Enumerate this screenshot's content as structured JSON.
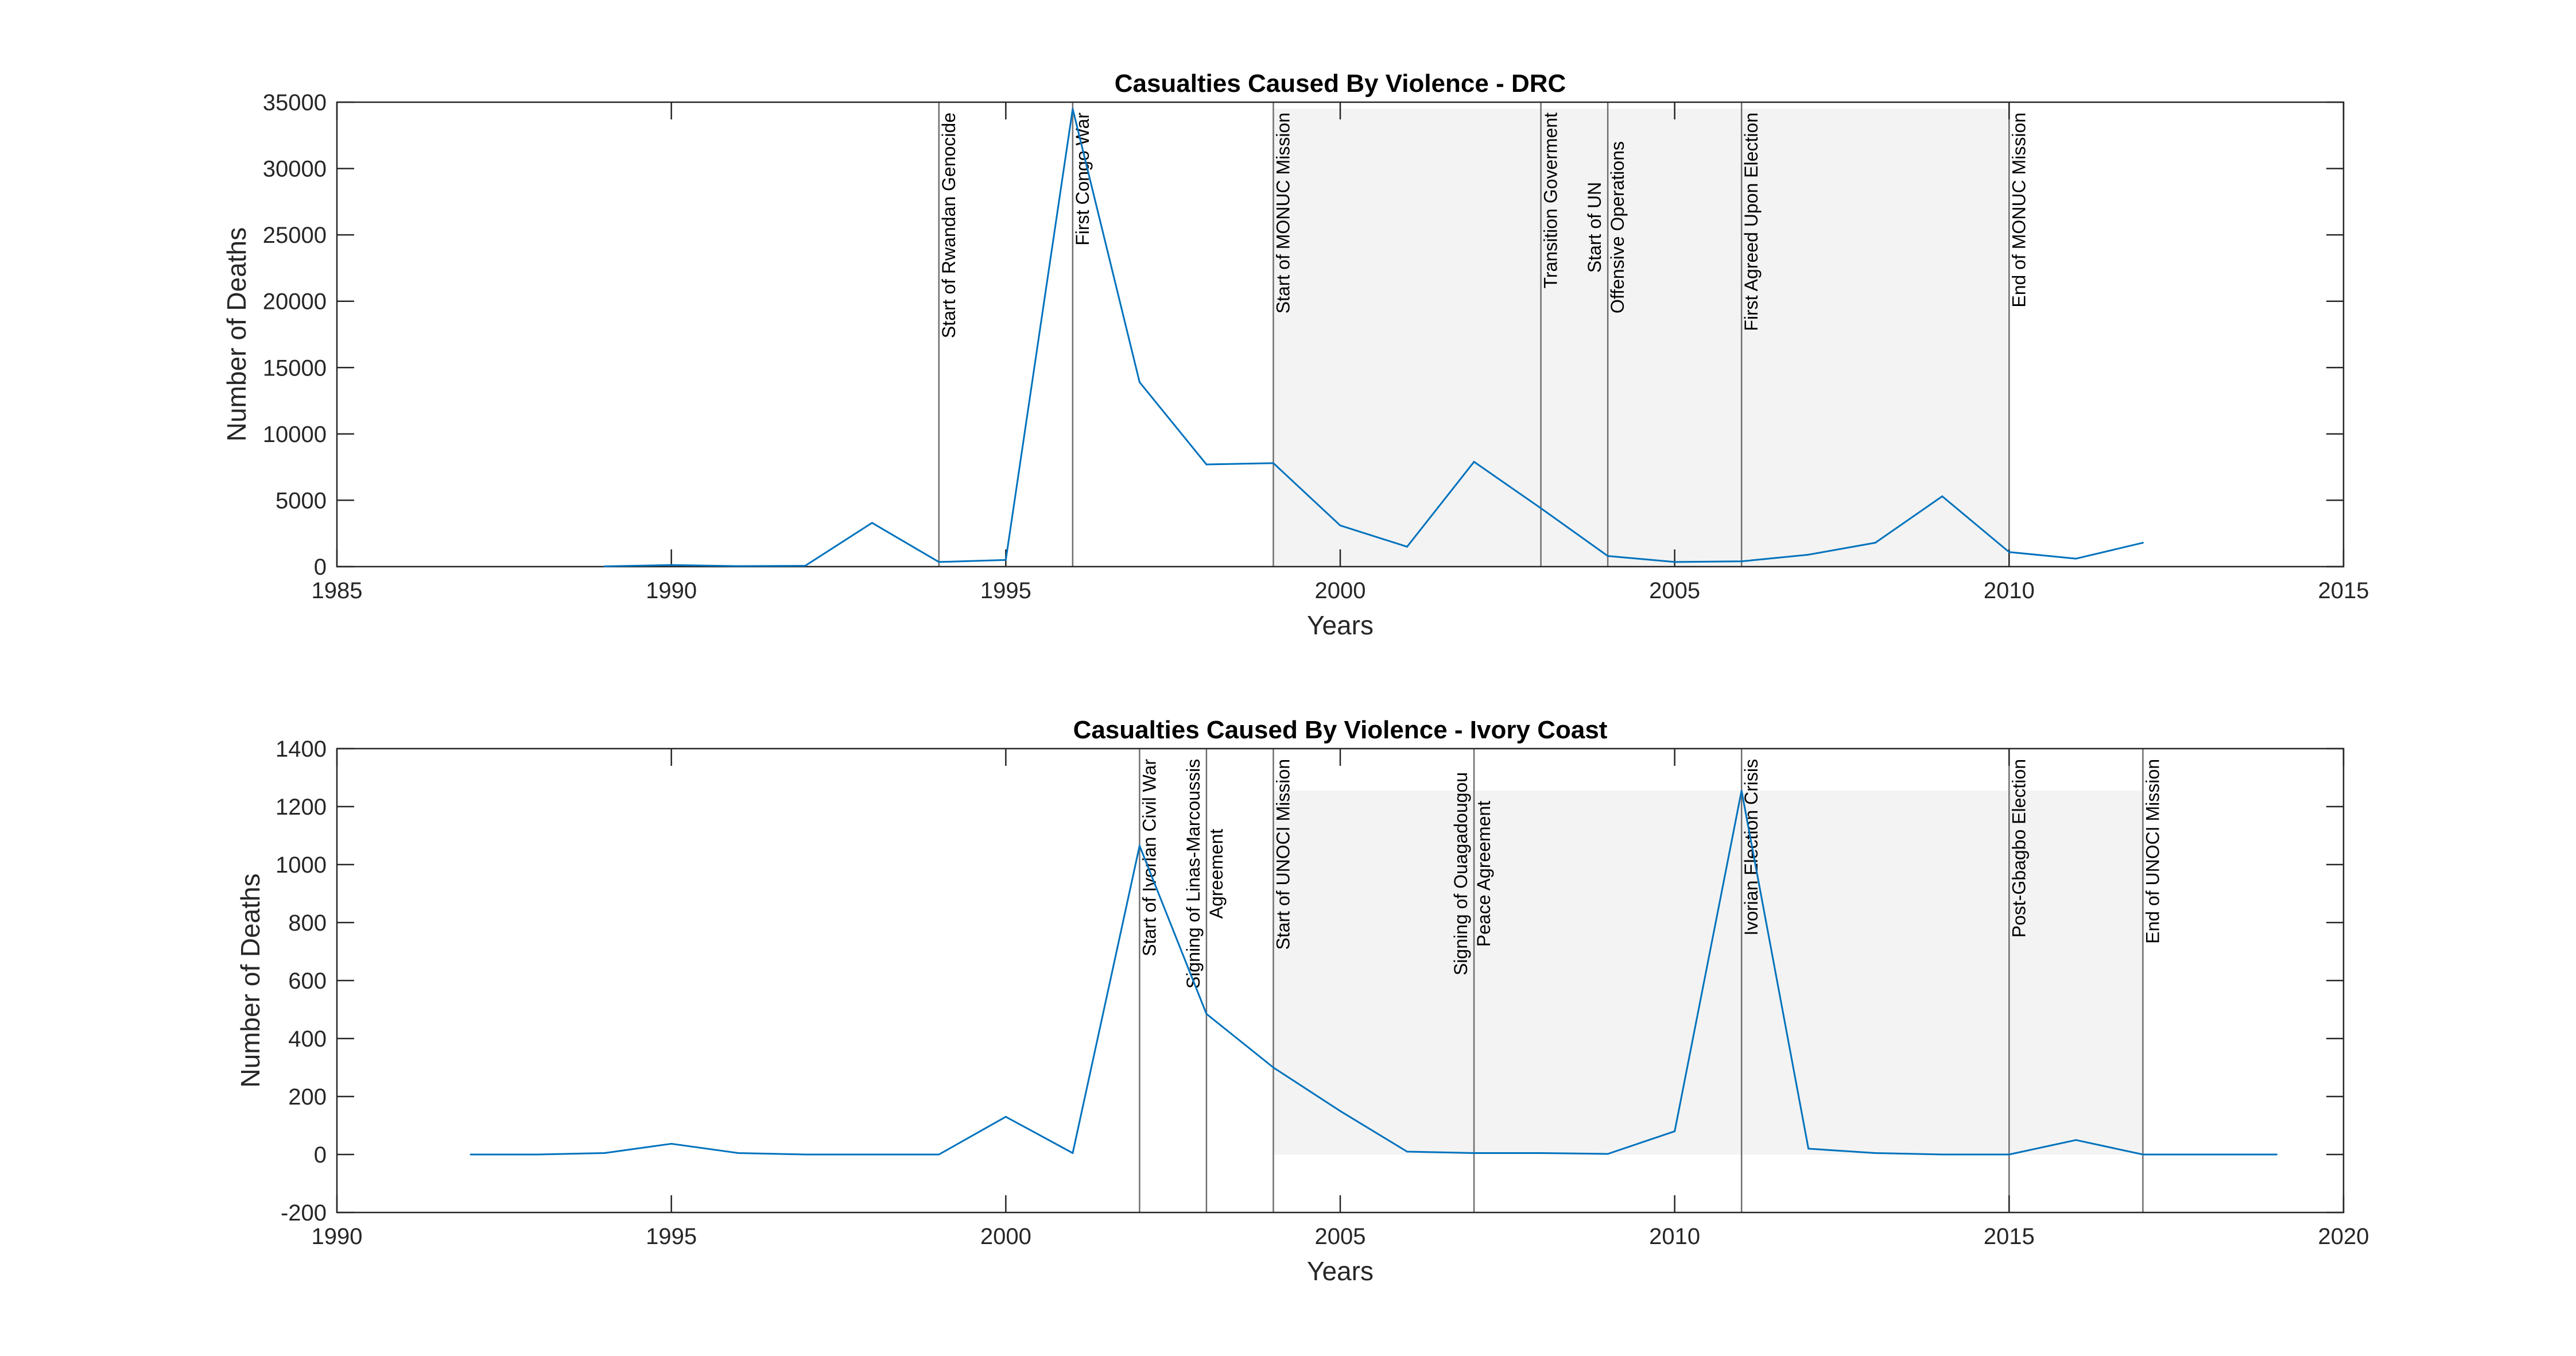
{
  "chart_data": [
    {
      "type": "line",
      "title": "Casualties Caused By Violence - DRC",
      "xlabel": "Years",
      "ylabel": "Number of Deaths",
      "xlim": [
        1985,
        2015
      ],
      "ylim": [
        0,
        35000
      ],
      "xticks": [
        "1985",
        "1990",
        "1995",
        "2000",
        "2005",
        "2010",
        "2015"
      ],
      "yticks": [
        "0",
        "5000",
        "10000",
        "15000",
        "20000",
        "25000",
        "30000",
        "35000"
      ],
      "series": [
        {
          "color": "#0072BD",
          "x": [
            1989,
            1990,
            1991,
            1992,
            1993,
            1994,
            1995,
            1996,
            1997,
            1998,
            1999,
            2000,
            2001,
            2002,
            2003,
            2004,
            2005,
            2006,
            2007,
            2008,
            2009,
            2010,
            2011,
            2012
          ],
          "y": [
            20,
            120,
            40,
            60,
            3300,
            350,
            500,
            34500,
            13900,
            7700,
            7800,
            3100,
            1500,
            7900,
            4400,
            800,
            350,
            400,
            900,
            1800,
            5300,
            1100,
            600,
            1800
          ]
        }
      ],
      "shaded_region": {
        "x": [
          1999,
          2010
        ],
        "y": [
          0,
          34500
        ]
      },
      "events": [
        {
          "x": 1994,
          "lines": [
            "Start of Rwandan Genocide"
          ]
        },
        {
          "x": 1996,
          "lines": [
            "First Congo War"
          ]
        },
        {
          "x": 1999,
          "lines": [
            "Start of MONUC Mission"
          ]
        },
        {
          "x": 2003,
          "lines": [
            "Transition Goverment"
          ]
        },
        {
          "x": 2004,
          "lines": [
            "Start of UN",
            "Offensive Operations"
          ]
        },
        {
          "x": 2006,
          "lines": [
            "First Agreed Upon Election"
          ]
        },
        {
          "x": 2010,
          "lines": [
            "End of MONUC Mission"
          ]
        }
      ]
    },
    {
      "type": "line",
      "title": "Casualties Caused By Violence - Ivory Coast",
      "xlabel": "Years",
      "ylabel": "Number of Deaths",
      "xlim": [
        1990,
        2020
      ],
      "ylim": [
        -200,
        1400
      ],
      "xticks": [
        "1990",
        "1995",
        "2000",
        "2005",
        "2010",
        "2015",
        "2020"
      ],
      "yticks": [
        "-200",
        "0",
        "200",
        "400",
        "600",
        "800",
        "1000",
        "1200",
        "1400"
      ],
      "series": [
        {
          "color": "#0072BD",
          "x": [
            1992,
            1993,
            1994,
            1995,
            1996,
            1997,
            1998,
            1999,
            2000,
            2001,
            2002,
            2003,
            2004,
            2005,
            2006,
            2007,
            2008,
            2009,
            2010,
            2011,
            2012,
            2013,
            2014,
            2015,
            2016,
            2017,
            2018,
            2019
          ],
          "y": [
            0,
            0,
            5,
            37,
            5,
            0,
            0,
            0,
            130,
            5,
            1065,
            485,
            300,
            150,
            10,
            5,
            5,
            2,
            80,
            1255,
            20,
            5,
            0,
            0,
            50,
            0,
            0,
            0
          ]
        }
      ],
      "shaded_region": {
        "x": [
          2004,
          2017
        ],
        "y": [
          0,
          1255
        ]
      },
      "events": [
        {
          "x": 2002,
          "lines": [
            "Start of Ivorian Civil War"
          ]
        },
        {
          "x": 2003,
          "lines": [
            "Signing of Linas-Marcoussis",
            "Agreement"
          ]
        },
        {
          "x": 2004,
          "lines": [
            "Start of UNOCI  Mission"
          ]
        },
        {
          "x": 2007,
          "lines": [
            "Signing of Ouagadougou",
            "Peace Agreement"
          ]
        },
        {
          "x": 2011,
          "lines": [
            "Ivorian Election Crisis"
          ]
        },
        {
          "x": 2015,
          "lines": [
            "Post-Gbagbo Election"
          ]
        },
        {
          "x": 2017,
          "lines": [
            "End of UNOCI  Mission"
          ]
        }
      ]
    }
  ]
}
